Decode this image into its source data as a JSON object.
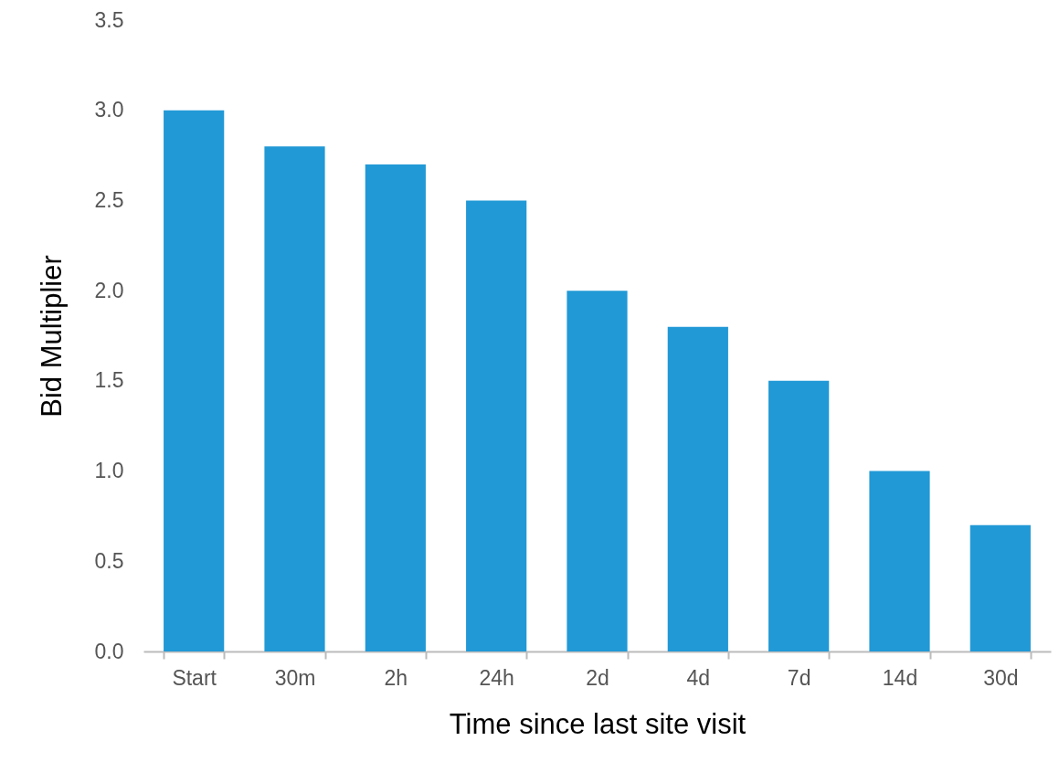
{
  "chart_data": {
    "type": "bar",
    "xlabel": "Time since last site visit",
    "ylabel": "Bid Multiplier",
    "categories": [
      "Start",
      "30m",
      "2h",
      "24h",
      "2d",
      "4d",
      "7d",
      "14d",
      "30d"
    ],
    "values": [
      3.0,
      2.8,
      2.7,
      2.5,
      2.0,
      1.8,
      1.5,
      1.0,
      0.7
    ],
    "color": "#2199d6",
    "ylim": [
      0,
      3.5
    ],
    "yticks": [
      {
        "value": 0,
        "label": "0.0"
      },
      {
        "value": 0.5,
        "label": "0.5"
      },
      {
        "value": 1,
        "label": "1.0"
      },
      {
        "value": 1.5,
        "label": "1.5"
      },
      {
        "value": 2,
        "label": "2.0"
      },
      {
        "value": 2.5,
        "label": "2.5"
      },
      {
        "value": 3,
        "label": "3.0"
      },
      {
        "value": 3.5,
        "label": "3.5"
      }
    ],
    "grid": false
  }
}
